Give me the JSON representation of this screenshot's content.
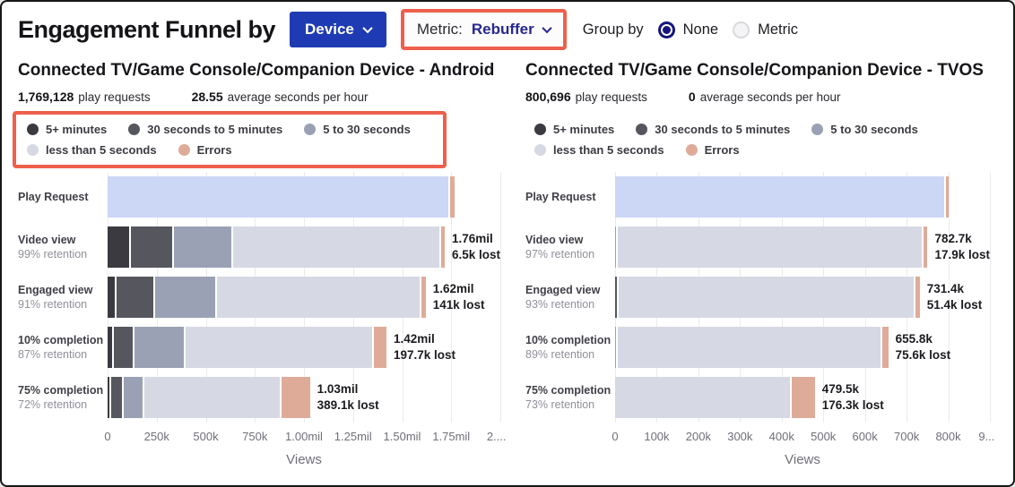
{
  "header": {
    "title": "Engagement Funnel by",
    "device_button_label": "Device",
    "metric_label": "Metric:",
    "metric_value": "Rebuffer",
    "group_by_label": "Group by",
    "radio_options": [
      {
        "label": "None",
        "selected": true
      },
      {
        "label": "Metric",
        "selected": false
      }
    ]
  },
  "colors": {
    "accent_blue": "#1e3bb3",
    "metric_text": "#28288f",
    "highlight_red": "#ee5f4c",
    "segment_colors": {
      "request": "#ccd7f5",
      "m5": "#3a3a40",
      "s30m5": "#56565e",
      "s5_30": "#9ba1b4",
      "lt5": "#d6d9e3",
      "err": "#dfab99"
    }
  },
  "legend": {
    "items": [
      {
        "key": "m5",
        "label": "5+ minutes"
      },
      {
        "key": "s30m5",
        "label": "30 seconds to 5 minutes"
      },
      {
        "key": "s5_30",
        "label": "5 to 30 seconds"
      },
      {
        "key": "lt5",
        "label": "less than 5 seconds"
      },
      {
        "key": "err",
        "label": "Errors"
      }
    ]
  },
  "chart_data": [
    {
      "type": "funnel-stacked-bar",
      "title": "Connected TV/Game Console/Companion Device - Android",
      "play_requests": "1,769,128",
      "play_requests_label": "play requests",
      "avg_value": "28.55",
      "avg_label": "average seconds per hour",
      "xlabel": "Views",
      "x_max": 2000000,
      "x_ticks": [
        "0",
        "250k",
        "500k",
        "750k",
        "1.00mil",
        "1.25mil",
        "1.50mil",
        "1.75mil",
        "2...."
      ],
      "rows": [
        {
          "label": "Play Request",
          "retention": "",
          "value_label": "",
          "lost_label": "",
          "segments": [
            [
              "request",
              1745000
            ],
            [
              "err",
              24000
            ]
          ]
        },
        {
          "label": "Video view",
          "retention": "99% retention",
          "value_label": "1.76mil",
          "lost_label": "6.5k lost",
          "segments": [
            [
              "m5",
              113000
            ],
            [
              "s30m5",
              222000
            ],
            [
              "s5_30",
              308000
            ],
            [
              "lt5",
              1097000
            ],
            [
              "err",
              20000
            ]
          ]
        },
        {
          "label": "Engaged view",
          "retention": "91% retention",
          "value_label": "1.62mil",
          "lost_label": "141k lost",
          "segments": [
            [
              "m5",
              38000
            ],
            [
              "s30m5",
              192000
            ],
            [
              "s5_30",
              314000
            ],
            [
              "lt5",
              1053000
            ],
            [
              "err",
              23000
            ]
          ]
        },
        {
          "label": "10% completion",
          "retention": "87% retention",
          "value_label": "1.42mil",
          "lost_label": "197.7k lost",
          "segments": [
            [
              "m5",
              25000
            ],
            [
              "s30m5",
              96000
            ],
            [
              "s5_30",
              257000
            ],
            [
              "lt5",
              976000
            ],
            [
              "err",
              66000
            ]
          ]
        },
        {
          "label": "75% completion",
          "retention": "72% retention",
          "value_label": "1.03mil",
          "lost_label": "389.1k lost",
          "segments": [
            [
              "m5",
              8000
            ],
            [
              "s30m5",
              59000
            ],
            [
              "s5_30",
              100000
            ],
            [
              "lt5",
              713000
            ],
            [
              "err",
              150000
            ]
          ]
        }
      ]
    },
    {
      "type": "funnel-stacked-bar",
      "title": "Connected TV/Game Console/Companion Device - TVOS",
      "play_requests": "800,696",
      "play_requests_label": "play requests",
      "avg_value": "0",
      "avg_label": "average seconds per hour",
      "xlabel": "Views",
      "x_max": 900000,
      "x_ticks": [
        "0",
        "100k",
        "200k",
        "300k",
        "400k",
        "500k",
        "600k",
        "700k",
        "800k",
        "9..."
      ],
      "rows": [
        {
          "label": "Play Request",
          "retention": "",
          "value_label": "",
          "lost_label": "",
          "segments": [
            [
              "request",
              795000
            ],
            [
              "err",
              5696
            ]
          ]
        },
        {
          "label": "Video view",
          "retention": "97% retention",
          "value_label": "782.7k",
          "lost_label": "17.9k lost",
          "segments": [
            [
              "s5_30",
              3000
            ],
            [
              "lt5",
              770700
            ],
            [
              "err",
              9000
            ]
          ]
        },
        {
          "label": "Engaged view",
          "retention": "93% retention",
          "value_label": "731.4k",
          "lost_label": "51.4k lost",
          "segments": [
            [
              "s30m5",
              4000
            ],
            [
              "lt5",
              716400
            ],
            [
              "err",
              11000
            ]
          ]
        },
        {
          "label": "10% completion",
          "retention": "89% retention",
          "value_label": "655.8k",
          "lost_label": "75.6k lost",
          "segments": [
            [
              "s5_30",
              3000
            ],
            [
              "lt5",
              637800
            ],
            [
              "err",
              15000
            ]
          ]
        },
        {
          "label": "75% completion",
          "retention": "73% retention",
          "value_label": "479.5k",
          "lost_label": "176.3k lost",
          "segments": [
            [
              "lt5",
              424500
            ],
            [
              "err",
              55000
            ]
          ]
        }
      ]
    }
  ]
}
